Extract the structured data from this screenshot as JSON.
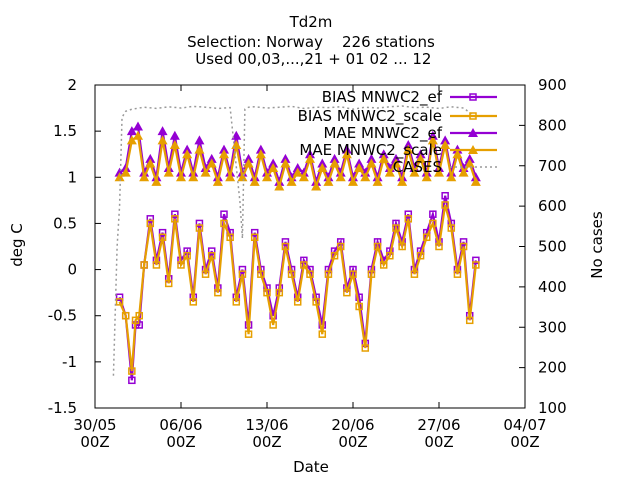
{
  "chart_data": {
    "type": "line",
    "title": "Td2m",
    "subtitle": "Selection: Norway    226 stations",
    "subtitle2": " Used 00,03,...,21 + 01 02 ... 12",
    "xlabel": "Date",
    "ylabel": "deg C",
    "y2label": "No cases",
    "xlim": [
      "30/05 00Z",
      "04/07 00Z"
    ],
    "ylim": [
      -1.5,
      2
    ],
    "y2lim": [
      100,
      900
    ],
    "x_ticks": [
      {
        "day": 0,
        "line1": "30/05",
        "line2": "00Z"
      },
      {
        "day": 7,
        "line1": "06/06",
        "line2": "00Z"
      },
      {
        "day": 14,
        "line1": "13/06",
        "line2": "00Z"
      },
      {
        "day": 21,
        "line1": "20/06",
        "line2": "00Z"
      },
      {
        "day": 28,
        "line1": "27/06",
        "line2": "00Z"
      },
      {
        "day": 35,
        "line1": "04/07",
        "line2": "00Z"
      }
    ],
    "y_ticks": [
      "-1.5",
      "-1",
      "-0.5",
      "0",
      "0.5",
      "1",
      "1.5",
      "2"
    ],
    "y2_ticks": [
      "100",
      "200",
      "300",
      "400",
      "500",
      "600",
      "700",
      "800",
      "900"
    ],
    "grid": false,
    "legend_position": "top-right",
    "legend": [
      "BIAS MNWC2_ef",
      "BIAS MNWC2_scale",
      "MAE MNWC2_ef",
      "MAE MNWC2_scale",
      "CASES"
    ],
    "series": [
      {
        "name": "BIAS MNWC2_ef",
        "color": "#9400d3",
        "marker": "square",
        "x_days": [
          2,
          2.5,
          3,
          3.3,
          3.6,
          4,
          4.5,
          5,
          5.5,
          6,
          6.5,
          7,
          7.5,
          8,
          8.5,
          9,
          9.5,
          10,
          10.5,
          11,
          11.5,
          12,
          12.5,
          13,
          13.5,
          14,
          14.5,
          15,
          15.5,
          16,
          16.5,
          17,
          17.5,
          18,
          18.5,
          19,
          19.5,
          20,
          20.5,
          21,
          21.5,
          22,
          22.5,
          23,
          23.5,
          24,
          24.5,
          25,
          25.5,
          26,
          26.5,
          27,
          27.5,
          28,
          28.5,
          29,
          29.5,
          30,
          30.5,
          31
        ],
        "y": [
          -0.3,
          -0.5,
          -1.2,
          -0.6,
          -0.6,
          0.05,
          0.55,
          0.1,
          0.4,
          -0.1,
          0.6,
          0.1,
          0.2,
          -0.3,
          0.5,
          0.0,
          0.2,
          -0.2,
          0.6,
          0.4,
          -0.3,
          0.0,
          -0.6,
          0.4,
          0.0,
          -0.2,
          -0.5,
          -0.2,
          0.3,
          0.0,
          -0.3,
          0.1,
          0.0,
          -0.3,
          -0.6,
          0.0,
          0.2,
          0.3,
          -0.2,
          0.0,
          -0.3,
          -0.8,
          0.0,
          0.3,
          0.1,
          0.2,
          0.5,
          0.3,
          0.6,
          0.0,
          0.2,
          0.4,
          0.6,
          0.3,
          0.8,
          0.5,
          0.0,
          0.3,
          -0.5,
          0.1
        ]
      },
      {
        "name": "BIAS MNWC2_scale",
        "color": "#e69f00",
        "marker": "square",
        "x_days": [
          2,
          2.5,
          3,
          3.3,
          3.6,
          4,
          4.5,
          5,
          5.5,
          6,
          6.5,
          7,
          7.5,
          8,
          8.5,
          9,
          9.5,
          10,
          10.5,
          11,
          11.5,
          12,
          12.5,
          13,
          13.5,
          14,
          14.5,
          15,
          15.5,
          16,
          16.5,
          17,
          17.5,
          18,
          18.5,
          19,
          19.5,
          20,
          20.5,
          21,
          21.5,
          22,
          22.5,
          23,
          23.5,
          24,
          24.5,
          25,
          25.5,
          26,
          26.5,
          27,
          27.5,
          28,
          28.5,
          29,
          29.5,
          30,
          30.5,
          31
        ],
        "y": [
          -0.35,
          -0.5,
          -1.1,
          -0.55,
          -0.5,
          0.05,
          0.5,
          0.05,
          0.35,
          -0.15,
          0.55,
          0.05,
          0.15,
          -0.35,
          0.45,
          -0.05,
          0.15,
          -0.25,
          0.5,
          0.35,
          -0.35,
          -0.05,
          -0.7,
          0.35,
          -0.05,
          -0.25,
          -0.6,
          -0.25,
          0.25,
          -0.05,
          -0.35,
          0.05,
          -0.05,
          -0.35,
          -0.7,
          -0.05,
          0.15,
          0.25,
          -0.25,
          -0.05,
          -0.4,
          -0.85,
          -0.05,
          0.25,
          0.05,
          0.15,
          0.45,
          0.25,
          0.55,
          -0.05,
          0.15,
          0.35,
          0.5,
          0.25,
          0.7,
          0.45,
          -0.05,
          0.25,
          -0.55,
          0.05
        ]
      },
      {
        "name": "MAE MNWC2_ef",
        "color": "#9400d3",
        "marker": "triangle",
        "x_days": [
          2,
          2.5,
          3,
          3.5,
          4,
          4.5,
          5,
          5.5,
          6,
          6.5,
          7,
          7.5,
          8,
          8.5,
          9,
          9.5,
          10,
          10.5,
          11,
          11.5,
          12,
          12.5,
          13,
          13.5,
          14,
          14.5,
          15,
          15.5,
          16,
          16.5,
          17,
          17.5,
          18,
          18.5,
          19,
          19.5,
          20,
          20.5,
          21,
          21.5,
          22,
          22.5,
          23,
          23.5,
          24,
          24.5,
          25,
          25.5,
          26,
          26.5,
          27,
          27.5,
          28,
          28.5,
          29,
          29.5,
          30,
          30.5,
          31
        ],
        "y": [
          1.05,
          1.1,
          1.5,
          1.55,
          1.05,
          1.2,
          1.0,
          1.5,
          1.1,
          1.45,
          1.05,
          1.3,
          1.05,
          1.4,
          1.1,
          1.2,
          1.0,
          1.3,
          1.05,
          1.45,
          1.05,
          1.2,
          1.0,
          1.3,
          1.05,
          1.15,
          0.95,
          1.2,
          1.0,
          1.1,
          1.05,
          1.25,
          0.95,
          1.15,
          1.0,
          1.2,
          1.05,
          1.3,
          1.0,
          1.15,
          1.05,
          1.2,
          1.0,
          1.25,
          1.1,
          1.2,
          1.0,
          1.35,
          1.1,
          1.25,
          1.05,
          1.45,
          1.1,
          1.4,
          1.05,
          1.3,
          1.1,
          1.2,
          1.0
        ]
      },
      {
        "name": "MAE MNWC2_scale",
        "color": "#e69f00",
        "marker": "triangle",
        "x_days": [
          2,
          2.5,
          3,
          3.5,
          4,
          4.5,
          5,
          5.5,
          6,
          6.5,
          7,
          7.5,
          8,
          8.5,
          9,
          9.5,
          10,
          10.5,
          11,
          11.5,
          12,
          12.5,
          13,
          13.5,
          14,
          14.5,
          15,
          15.5,
          16,
          16.5,
          17,
          17.5,
          18,
          18.5,
          19,
          19.5,
          20,
          20.5,
          21,
          21.5,
          22,
          22.5,
          23,
          23.5,
          24,
          24.5,
          25,
          25.5,
          26,
          26.5,
          27,
          27.5,
          28,
          28.5,
          29,
          29.5,
          30,
          30.5,
          31
        ],
        "y": [
          1.0,
          1.05,
          1.4,
          1.45,
          1.0,
          1.15,
          0.95,
          1.4,
          1.05,
          1.35,
          1.0,
          1.25,
          1.0,
          1.3,
          1.05,
          1.15,
          0.95,
          1.25,
          1.0,
          1.35,
          1.0,
          1.15,
          0.95,
          1.25,
          1.0,
          1.1,
          0.9,
          1.15,
          0.95,
          1.05,
          1.0,
          1.2,
          0.9,
          1.1,
          0.95,
          1.15,
          1.0,
          1.25,
          0.95,
          1.1,
          1.0,
          1.15,
          0.95,
          1.2,
          1.05,
          1.15,
          0.95,
          1.3,
          1.05,
          1.2,
          1.0,
          1.4,
          1.05,
          1.35,
          1.0,
          1.25,
          1.05,
          1.15,
          0.95
        ]
      },
      {
        "name": "CASES",
        "color": "#999999",
        "marker": "dots",
        "axis": "y2",
        "x_days": [
          1.5,
          1.8,
          2.0,
          2.2,
          2.5,
          3,
          4,
          5,
          6,
          7,
          8,
          9,
          10,
          11,
          11.8,
          12.0,
          12.2,
          12.5,
          13,
          14,
          15,
          16,
          17,
          18,
          19,
          20,
          21,
          22,
          23,
          24,
          25,
          26,
          27,
          28,
          29,
          30,
          31
        ],
        "y": [
          180,
          500,
          600,
          820,
          835,
          840,
          845,
          842,
          846,
          843,
          847,
          845,
          842,
          844,
          610,
          520,
          840,
          845,
          846,
          843,
          845,
          847,
          842,
          845,
          844,
          846,
          840,
          845,
          843,
          846,
          848,
          844,
          845,
          842,
          846,
          843,
          820
        ]
      }
    ]
  }
}
